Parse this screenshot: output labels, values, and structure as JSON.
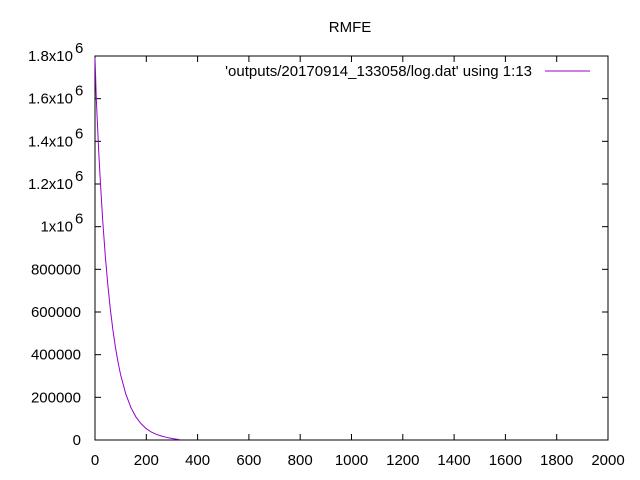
{
  "chart_data": {
    "type": "line",
    "title": "RMFE",
    "xlabel": "",
    "ylabel": "",
    "xlim": [
      0,
      2000
    ],
    "ylim": [
      0,
      1800000
    ],
    "x_ticks": [
      {
        "value": 0,
        "label": "0"
      },
      {
        "value": 200,
        "label": "200"
      },
      {
        "value": 400,
        "label": "400"
      },
      {
        "value": 600,
        "label": "600"
      },
      {
        "value": 800,
        "label": "800"
      },
      {
        "value": 1000,
        "label": "1000"
      },
      {
        "value": 1200,
        "label": "1200"
      },
      {
        "value": 1400,
        "label": "1400"
      },
      {
        "value": 1600,
        "label": "1600"
      },
      {
        "value": 1800,
        "label": "1800"
      },
      {
        "value": 2000,
        "label": "2000"
      }
    ],
    "y_ticks": [
      {
        "value": 0,
        "label": "0"
      },
      {
        "value": 200000,
        "label": "200000"
      },
      {
        "value": 400000,
        "label": "400000"
      },
      {
        "value": 600000,
        "label": "600000"
      },
      {
        "value": 800000,
        "label": "800000"
      },
      {
        "value": 1000000,
        "label": "1x10",
        "exp": "6"
      },
      {
        "value": 1200000,
        "label": "1.2x10",
        "exp": "6"
      },
      {
        "value": 1400000,
        "label": "1.4x10",
        "exp": "6"
      },
      {
        "value": 1600000,
        "label": "1.6x10",
        "exp": "6"
      },
      {
        "value": 1800000,
        "label": "1.8x10",
        "exp": "6"
      }
    ],
    "grid": false,
    "legend_position": "top-right",
    "series": [
      {
        "name": "'outputs/20170914_133058/log.dat' using 1:13",
        "color": "#9400d3",
        "x": [
          0,
          2,
          5,
          10,
          15,
          20,
          30,
          40,
          50,
          60,
          70,
          80,
          90,
          100,
          120,
          140,
          160,
          180,
          200,
          220,
          240,
          260,
          280,
          300,
          330
        ],
        "y": [
          1790000,
          1720000,
          1600000,
          1470000,
          1340000,
          1230000,
          1030000,
          865000,
          727000,
          611000,
          514000,
          432000,
          363000,
          305000,
          216000,
          152000,
          107000,
          76000,
          53000,
          37000,
          26000,
          18000,
          12000,
          7000,
          2000
        ]
      }
    ]
  }
}
